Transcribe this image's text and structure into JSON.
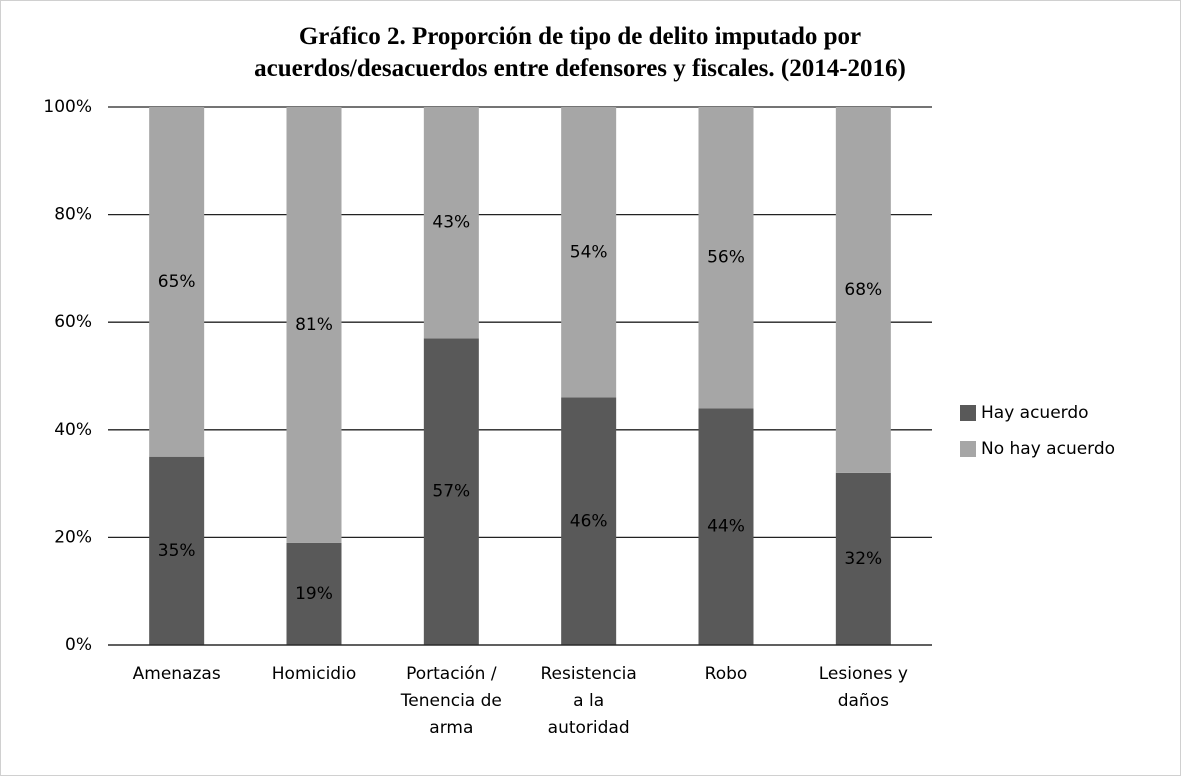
{
  "chart_data": {
    "type": "stacked_bar",
    "title": "Gráfico 2. Proporción de tipo de delito imputado por\nacuerdos/desacuerdos  entre defensores y fiscales. (2014-2016)",
    "categories": [
      "Amenazas",
      "Homicidio",
      "Portación /\nTenencia  de\narma",
      "Resistencia\na la\nautoridad",
      "Robo",
      "Lesiones y\ndaños"
    ],
    "series": [
      {
        "name": "Hay acuerdo",
        "color": "#595959",
        "values": [
          35,
          19,
          57,
          46,
          44,
          32
        ],
        "value_labels": [
          "35%",
          "19%",
          "57%",
          "46%",
          "44%",
          "32%"
        ]
      },
      {
        "name": "No hay acuerdo",
        "color": "#a6a6a6",
        "values": [
          65,
          81,
          43,
          54,
          56,
          68
        ],
        "value_labels": [
          "65%",
          "81%",
          "43%",
          "54%",
          "56%",
          "68%"
        ]
      }
    ],
    "ylim": [
      0,
      100
    ],
    "yticks": [
      {
        "value": 0,
        "label": "0%"
      },
      {
        "value": 20,
        "label": "20%"
      },
      {
        "value": 40,
        "label": "40%"
      },
      {
        "value": 60,
        "label": "60%"
      },
      {
        "value": 80,
        "label": "80%"
      },
      {
        "value": 100,
        "label": "100%"
      }
    ],
    "grid": true,
    "legend": "right"
  }
}
